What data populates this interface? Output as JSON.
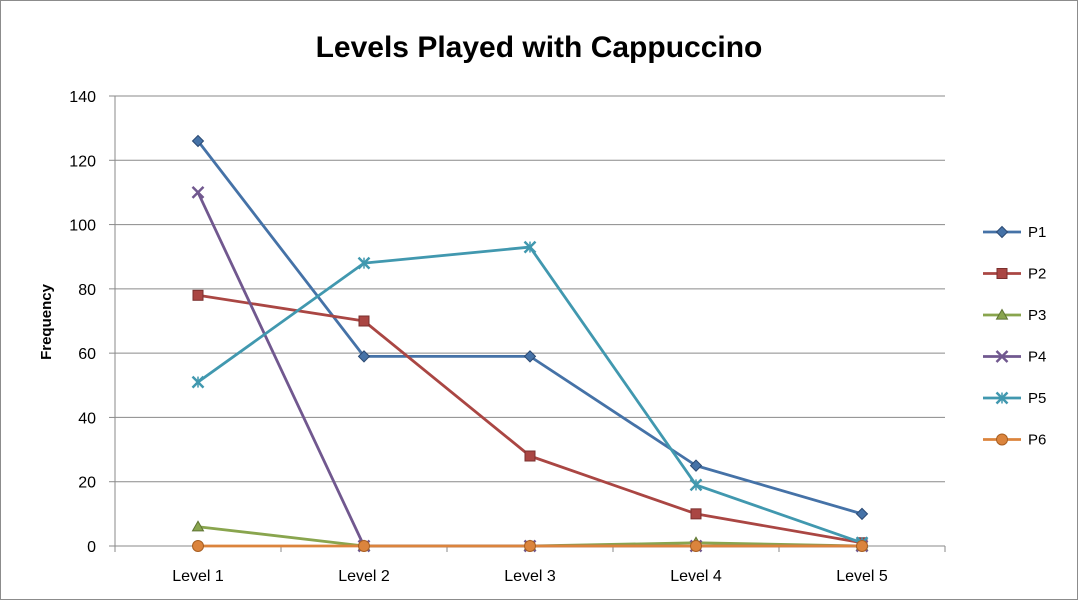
{
  "chart_data": {
    "type": "line",
    "title": "Levels Played with Cappuccino",
    "xlabel": "",
    "ylabel": "Frequency",
    "categories": [
      "Level 1",
      "Level 2",
      "Level 3",
      "Level 4",
      "Level 5"
    ],
    "ylim": [
      0,
      140
    ],
    "yticks": [
      "0",
      "20",
      "40",
      "60",
      "80",
      "100",
      "120",
      "140"
    ],
    "grid": "horizontal",
    "legend_position": "right",
    "series": [
      {
        "name": "P1",
        "values": [
          126,
          59,
          59,
          25,
          10
        ],
        "color": "#4572a7",
        "marker": "diamond"
      },
      {
        "name": "P2",
        "values": [
          78,
          70,
          28,
          10,
          1
        ],
        "color": "#aa4643",
        "marker": "square"
      },
      {
        "name": "P3",
        "values": [
          6,
          0,
          0,
          1,
          0
        ],
        "color": "#89a54e",
        "marker": "triangle"
      },
      {
        "name": "P4",
        "values": [
          110,
          0,
          0,
          0,
          0
        ],
        "color": "#71588f",
        "marker": "x"
      },
      {
        "name": "P5",
        "values": [
          51,
          88,
          93,
          19,
          1
        ],
        "color": "#4198af",
        "marker": "star"
      },
      {
        "name": "P6",
        "values": [
          0,
          0,
          0,
          0,
          0
        ],
        "color": "#db843d",
        "marker": "circle"
      }
    ]
  }
}
